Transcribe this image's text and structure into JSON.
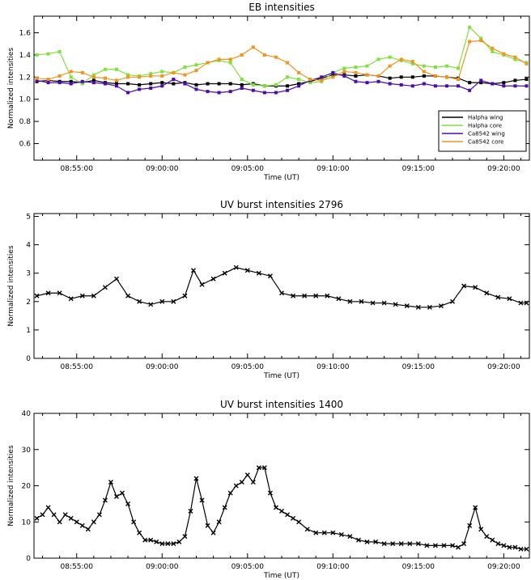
{
  "chart_data": [
    {
      "type": "line",
      "title": "EB intensities",
      "xlabel": "Time (UT)",
      "ylabel": "Normalized intensities",
      "xlim": [
        "08:52:30",
        "09:21:30"
      ],
      "ylim": [
        0.45,
        1.75
      ],
      "xticks": [
        "08:55:00",
        "09:00:00",
        "09:05:00",
        "09:10:00",
        "09:15:00",
        "09:20:00"
      ],
      "yticks": [
        "0.6",
        "0.8",
        "1.0",
        "1.2",
        "1.4",
        "1.6"
      ],
      "legend_position": "bottom-right",
      "series": [
        {
          "name": "Halpha wing",
          "color": "#000000",
          "x": [
            "08:52:40",
            "08:53:20",
            "08:54:00",
            "08:54:40",
            "08:55:20",
            "08:56:00",
            "08:56:40",
            "08:57:20",
            "08:58:00",
            "08:58:40",
            "08:59:20",
            "09:00:00",
            "09:00:40",
            "09:01:20",
            "09:02:00",
            "09:02:40",
            "09:03:20",
            "09:04:00",
            "09:04:40",
            "09:05:20",
            "09:06:00",
            "09:06:40",
            "09:07:20",
            "09:08:00",
            "09:08:40",
            "09:09:20",
            "09:10:00",
            "09:10:40",
            "09:11:20",
            "09:12:00",
            "09:12:40",
            "09:13:20",
            "09:14:00",
            "09:14:40",
            "09:15:20",
            "09:16:00",
            "09:16:40",
            "09:17:20",
            "09:18:00",
            "09:18:40",
            "09:19:20",
            "09:20:00",
            "09:20:40",
            "09:21:20"
          ],
          "y": [
            1.16,
            1.17,
            1.16,
            1.16,
            1.15,
            1.17,
            1.15,
            1.14,
            1.14,
            1.13,
            1.14,
            1.15,
            1.14,
            1.15,
            1.13,
            1.14,
            1.14,
            1.14,
            1.13,
            1.14,
            1.12,
            1.12,
            1.12,
            1.14,
            1.16,
            1.19,
            1.22,
            1.22,
            1.21,
            1.22,
            1.21,
            1.19,
            1.2,
            1.2,
            1.21,
            1.21,
            1.2,
            1.19,
            1.15,
            1.15,
            1.14,
            1.15,
            1.17,
            1.18
          ]
        },
        {
          "name": "Halpha core",
          "color": "#7fe23a",
          "x": [
            "08:52:40",
            "08:53:20",
            "08:54:00",
            "08:54:40",
            "08:55:20",
            "08:56:00",
            "08:56:40",
            "08:57:20",
            "08:58:00",
            "08:58:40",
            "08:59:20",
            "09:00:00",
            "09:00:40",
            "09:01:20",
            "09:02:00",
            "09:02:40",
            "09:03:20",
            "09:04:00",
            "09:04:40",
            "09:05:20",
            "09:06:00",
            "09:06:40",
            "09:07:20",
            "09:08:00",
            "09:08:40",
            "09:09:20",
            "09:10:00",
            "09:10:40",
            "09:11:20",
            "09:12:00",
            "09:12:40",
            "09:13:20",
            "09:14:00",
            "09:14:40",
            "09:15:20",
            "09:16:00",
            "09:16:40",
            "09:17:20",
            "09:18:00",
            "09:18:40",
            "09:19:20",
            "09:20:00",
            "09:20:40",
            "09:21:20"
          ],
          "y": [
            1.4,
            1.41,
            1.43,
            1.2,
            1.14,
            1.22,
            1.27,
            1.27,
            1.22,
            1.21,
            1.23,
            1.25,
            1.24,
            1.29,
            1.31,
            1.33,
            1.35,
            1.33,
            1.18,
            1.13,
            1.12,
            1.13,
            1.2,
            1.18,
            1.15,
            1.16,
            1.24,
            1.28,
            1.29,
            1.3,
            1.36,
            1.38,
            1.35,
            1.32,
            1.3,
            1.29,
            1.3,
            1.28,
            1.65,
            1.55,
            1.43,
            1.4,
            1.36,
            1.33
          ]
        },
        {
          "name": "Ca8542 wing",
          "color": "#4b0bb0",
          "x": [
            "08:52:40",
            "08:53:20",
            "08:54:00",
            "08:54:40",
            "08:55:20",
            "08:56:00",
            "08:56:40",
            "08:57:20",
            "08:58:00",
            "08:58:40",
            "08:59:20",
            "09:00:00",
            "09:00:40",
            "09:01:20",
            "09:02:00",
            "09:02:40",
            "09:03:20",
            "09:04:00",
            "09:04:40",
            "09:05:20",
            "09:06:00",
            "09:06:40",
            "09:07:20",
            "09:08:00",
            "09:08:40",
            "09:09:20",
            "09:10:00",
            "09:10:40",
            "09:11:20",
            "09:12:00",
            "09:12:40",
            "09:13:20",
            "09:14:00",
            "09:14:40",
            "09:15:20",
            "09:16:00",
            "09:16:40",
            "09:17:20",
            "09:18:00",
            "09:18:40",
            "09:19:20",
            "09:20:00",
            "09:20:40",
            "09:21:20"
          ],
          "y": [
            1.17,
            1.15,
            1.15,
            1.14,
            1.16,
            1.15,
            1.14,
            1.12,
            1.06,
            1.09,
            1.1,
            1.12,
            1.18,
            1.14,
            1.09,
            1.07,
            1.06,
            1.07,
            1.1,
            1.08,
            1.06,
            1.06,
            1.08,
            1.12,
            1.17,
            1.2,
            1.24,
            1.21,
            1.16,
            1.15,
            1.16,
            1.14,
            1.13,
            1.12,
            1.14,
            1.12,
            1.12,
            1.12,
            1.08,
            1.17,
            1.14,
            1.12,
            1.12,
            1.12
          ]
        },
        {
          "name": "Ca8542 core",
          "color": "#f0941e",
          "x": [
            "08:52:40",
            "08:53:20",
            "08:54:00",
            "08:54:40",
            "08:55:20",
            "08:56:00",
            "08:56:40",
            "08:57:20",
            "08:58:00",
            "08:58:40",
            "08:59:20",
            "09:00:00",
            "09:00:40",
            "09:01:20",
            "09:02:00",
            "09:02:40",
            "09:03:20",
            "09:04:00",
            "09:04:40",
            "09:05:20",
            "09:06:00",
            "09:06:40",
            "09:07:20",
            "09:08:00",
            "09:08:40",
            "09:09:20",
            "09:10:00",
            "09:10:40",
            "09:11:20",
            "09:12:00",
            "09:12:40",
            "09:13:20",
            "09:14:00",
            "09:14:40",
            "09:15:20",
            "09:16:00",
            "09:16:40",
            "09:17:20",
            "09:18:00",
            "09:18:40",
            "09:19:20",
            "09:20:00",
            "09:20:40",
            "09:21:20"
          ],
          "y": [
            1.19,
            1.18,
            1.21,
            1.25,
            1.24,
            1.2,
            1.19,
            1.17,
            1.2,
            1.2,
            1.21,
            1.21,
            1.24,
            1.22,
            1.26,
            1.33,
            1.36,
            1.36,
            1.4,
            1.47,
            1.4,
            1.38,
            1.33,
            1.24,
            1.18,
            1.17,
            1.2,
            1.25,
            1.24,
            1.22,
            1.21,
            1.3,
            1.36,
            1.34,
            1.25,
            1.21,
            1.2,
            1.18,
            1.52,
            1.53,
            1.46,
            1.41,
            1.38,
            1.32
          ]
        }
      ]
    },
    {
      "type": "line",
      "title": "UV burst intensities 2796",
      "xlabel": "Time (UT)",
      "ylabel": "Normalized intensities",
      "xlim": [
        "08:52:30",
        "09:21:30"
      ],
      "ylim": [
        0,
        5.1
      ],
      "xticks": [
        "08:55:00",
        "09:00:00",
        "09:05:00",
        "09:10:00",
        "09:15:00",
        "09:20:00"
      ],
      "yticks": [
        "0",
        "1",
        "2",
        "3",
        "4",
        "5"
      ],
      "series": [
        {
          "color": "#000000",
          "x": [
            "08:52:40",
            "08:53:20",
            "08:54:00",
            "08:54:40",
            "08:55:20",
            "08:56:00",
            "08:56:40",
            "08:57:20",
            "08:58:00",
            "08:58:40",
            "08:59:20",
            "09:00:00",
            "09:00:40",
            "09:01:20",
            "09:01:50",
            "09:02:20",
            "09:03:00",
            "09:03:40",
            "09:04:20",
            "09:05:00",
            "09:05:40",
            "09:06:20",
            "09:07:00",
            "09:07:40",
            "09:08:20",
            "09:09:00",
            "09:09:40",
            "09:10:20",
            "09:11:00",
            "09:11:40",
            "09:12:20",
            "09:13:00",
            "09:13:40",
            "09:14:20",
            "09:15:00",
            "09:15:40",
            "09:16:20",
            "09:17:00",
            "09:17:40",
            "09:18:20",
            "09:19:00",
            "09:19:40",
            "09:20:20",
            "09:21:00",
            "09:21:20"
          ],
          "y": [
            2.2,
            2.3,
            2.3,
            2.1,
            2.2,
            2.2,
            2.5,
            2.8,
            2.2,
            2.0,
            1.9,
            2.0,
            2.0,
            2.2,
            3.1,
            2.6,
            2.8,
            3.0,
            3.2,
            3.1,
            3.0,
            2.9,
            2.3,
            2.2,
            2.2,
            2.2,
            2.2,
            2.1,
            2.0,
            2.0,
            1.95,
            1.95,
            1.9,
            1.85,
            1.8,
            1.8,
            1.85,
            2.0,
            2.55,
            2.5,
            2.3,
            2.15,
            2.1,
            1.95,
            1.95
          ]
        }
      ]
    },
    {
      "type": "line",
      "title": "UV burst intensities 1400",
      "xlabel": "Time (UT)",
      "ylabel": "Normalized intensities",
      "xlim": [
        "08:52:30",
        "09:21:30"
      ],
      "ylim": [
        0,
        40
      ],
      "xticks": [
        "08:55:00",
        "09:00:00",
        "09:05:00",
        "09:10:00",
        "09:15:00",
        "09:20:00"
      ],
      "yticks": [
        "0",
        "10",
        "20",
        "30",
        "40"
      ],
      "series": [
        {
          "color": "#000000",
          "x": [
            "08:52:40",
            "08:53:00",
            "08:53:20",
            "08:53:40",
            "08:54:00",
            "08:54:20",
            "08:54:40",
            "08:55:00",
            "08:55:20",
            "08:55:40",
            "08:56:00",
            "08:56:20",
            "08:56:40",
            "08:57:00",
            "08:57:20",
            "08:57:40",
            "08:58:00",
            "08:58:20",
            "08:58:40",
            "08:59:00",
            "08:59:20",
            "08:59:40",
            "09:00:00",
            "09:00:20",
            "09:00:40",
            "09:01:00",
            "09:01:20",
            "09:01:40",
            "09:02:00",
            "09:02:20",
            "09:02:40",
            "09:03:00",
            "09:03:20",
            "09:03:40",
            "09:04:00",
            "09:04:20",
            "09:04:40",
            "09:05:00",
            "09:05:20",
            "09:05:40",
            "09:06:00",
            "09:06:20",
            "09:06:40",
            "09:07:00",
            "09:07:20",
            "09:07:40",
            "09:08:00",
            "09:08:30",
            "09:09:00",
            "09:09:30",
            "09:10:00",
            "09:10:30",
            "09:11:00",
            "09:11:30",
            "09:12:00",
            "09:12:30",
            "09:13:00",
            "09:13:30",
            "09:14:00",
            "09:14:30",
            "09:15:00",
            "09:15:30",
            "09:16:00",
            "09:16:30",
            "09:17:00",
            "09:17:20",
            "09:17:40",
            "09:18:00",
            "09:18:20",
            "09:18:40",
            "09:19:00",
            "09:19:20",
            "09:19:40",
            "09:20:00",
            "09:20:20",
            "09:20:40",
            "09:21:00",
            "09:21:20"
          ],
          "y": [
            11,
            12,
            14,
            12,
            10,
            12,
            11,
            10,
            9,
            8,
            10,
            12,
            16,
            21,
            17,
            18,
            15,
            10,
            7,
            5,
            5,
            4.5,
            4,
            4,
            4,
            4.5,
            6,
            13,
            22,
            16,
            9,
            7,
            10,
            14,
            18,
            20,
            21,
            23,
            21,
            25,
            25,
            18,
            14,
            13,
            12,
            11,
            10,
            8,
            7,
            7,
            7,
            6.5,
            6,
            5,
            4.5,
            4.5,
            4,
            4,
            4,
            4,
            4,
            3.5,
            3.5,
            3.5,
            3.5,
            3,
            4,
            9,
            14,
            8,
            6,
            5,
            4,
            3.5,
            3,
            3,
            2.5,
            2.5
          ]
        }
      ]
    }
  ]
}
